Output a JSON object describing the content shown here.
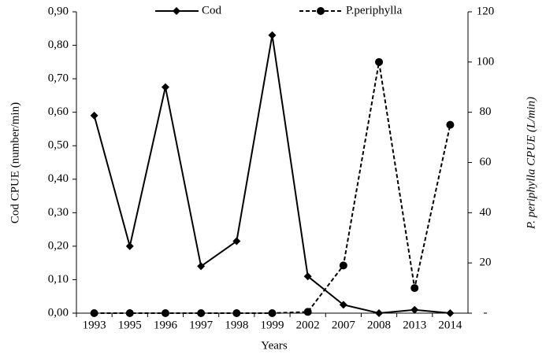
{
  "chart_data": {
    "type": "line",
    "xlabel": "Years",
    "ylabel": "Cod CPUE (number/min)",
    "y2label": "P. periphylla CPUE (L/min)",
    "categories": [
      "1993",
      "1995",
      "1996",
      "1997",
      "1998",
      "1999",
      "2002",
      "2007",
      "2008",
      "2013",
      "2014"
    ],
    "series": [
      {
        "name": "Cod",
        "color": "#000000",
        "marker": "diamond",
        "dash": false,
        "values": [
          0.59,
          0.2,
          0.675,
          0.14,
          0.215,
          0.83,
          0.11,
          0.025,
          0.0,
          0.01,
          0.0
        ]
      },
      {
        "name": "P.periphylla",
        "color": "#000000",
        "marker": "circle",
        "dash": true,
        "axis": "y2",
        "values": [
          0,
          0,
          0,
          0,
          0,
          0,
          0.5,
          19,
          100,
          10,
          75
        ]
      }
    ],
    "ylim": [
      0,
      0.9
    ],
    "yticks": [
      {
        "value": 0,
        "label": "0,00"
      },
      {
        "value": 0.1,
        "label": "0,10"
      },
      {
        "value": 0.2,
        "label": "0,20"
      },
      {
        "value": 0.3,
        "label": "0,30"
      },
      {
        "value": 0.4,
        "label": "0,40"
      },
      {
        "value": 0.5,
        "label": "0,50"
      },
      {
        "value": 0.6,
        "label": "0,60"
      },
      {
        "value": 0.7,
        "label": "0,70"
      },
      {
        "value": 0.8,
        "label": "0,80"
      },
      {
        "value": 0.9,
        "label": "0,90"
      }
    ],
    "y2lim": [
      0,
      120
    ],
    "y2ticks": [
      {
        "value": 0,
        "label": "-"
      },
      20,
      40,
      60,
      80,
      100,
      120
    ],
    "legend": "top",
    "grid": false
  }
}
